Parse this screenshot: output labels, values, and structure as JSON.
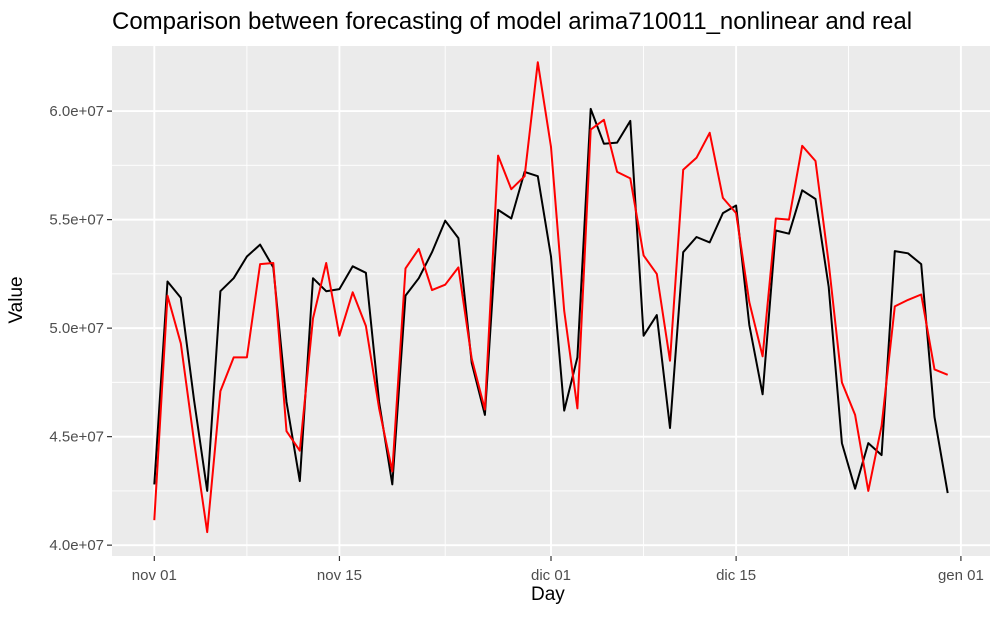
{
  "chart_data": {
    "type": "line",
    "title": "Comparison between forecasting of model arima710011_nonlinear and real",
    "xlabel": "Day",
    "ylabel": "Value",
    "ylim": [
      39500000,
      63000000
    ],
    "y_ticks": [
      {
        "value": 40000000,
        "label": "4.0e+07"
      },
      {
        "value": 45000000,
        "label": "4.5e+07"
      },
      {
        "value": 50000000,
        "label": "5.0e+07"
      },
      {
        "value": 55000000,
        "label": "5.5e+07"
      },
      {
        "value": 60000000,
        "label": "6.0e+07"
      }
    ],
    "x_ticks": [
      {
        "value": 0,
        "label": "nov 01"
      },
      {
        "value": 14,
        "label": "nov 15"
      },
      {
        "value": 30,
        "label": "dic 01"
      },
      {
        "value": 44,
        "label": "dic 15"
      },
      {
        "value": 61,
        "label": "gen 01"
      }
    ],
    "x_start_label": "nov 01",
    "xlim": [
      -3.2,
      63.2
    ],
    "grid": true,
    "background": "#ebebeb",
    "series": [
      {
        "color": "#000000",
        "values": [
          42800000,
          52150000,
          51400000,
          46700000,
          42500000,
          51700000,
          52300000,
          53300000,
          53850000,
          52800000,
          46600000,
          42950000,
          52300000,
          51700000,
          51800000,
          52850000,
          52550000,
          46600000,
          42800000,
          51500000,
          52300000,
          53500000,
          54950000,
          54150000,
          48400000,
          46000000,
          55450000,
          55050000,
          57200000,
          57000000,
          53300000,
          46200000,
          48650000,
          60100000,
          58500000,
          58550000,
          59550000,
          49650000,
          50600000,
          45400000,
          53500000,
          54200000,
          53950000,
          55300000,
          55650000,
          50150000,
          46950000,
          54500000,
          54350000,
          56350000,
          55950000,
          51900000,
          44700000,
          42600000,
          44700000,
          44150000,
          53550000,
          53450000,
          52950000,
          45900000,
          42400000
        ]
      },
      {
        "color": "#ff0000",
        "values": [
          41150000,
          51500000,
          49300000,
          44800000,
          40600000,
          47100000,
          48650000,
          48650000,
          52950000,
          53000000,
          45250000,
          44350000,
          50450000,
          53000000,
          49650000,
          51650000,
          50100000,
          46300000,
          43400000,
          52750000,
          53650000,
          51750000,
          52000000,
          52800000,
          48600000,
          46250000,
          57950000,
          56400000,
          57000000,
          62250000,
          58350000,
          50800000,
          46300000,
          59150000,
          59600000,
          57200000,
          56900000,
          53350000,
          52500000,
          48500000,
          57300000,
          57850000,
          59000000,
          56000000,
          55300000,
          51200000,
          48700000,
          55050000,
          55000000,
          58400000,
          57700000,
          53000000,
          47500000,
          46000000,
          42500000,
          45500000,
          51000000,
          51300000,
          51550000,
          48100000,
          47850000
        ]
      }
    ]
  }
}
